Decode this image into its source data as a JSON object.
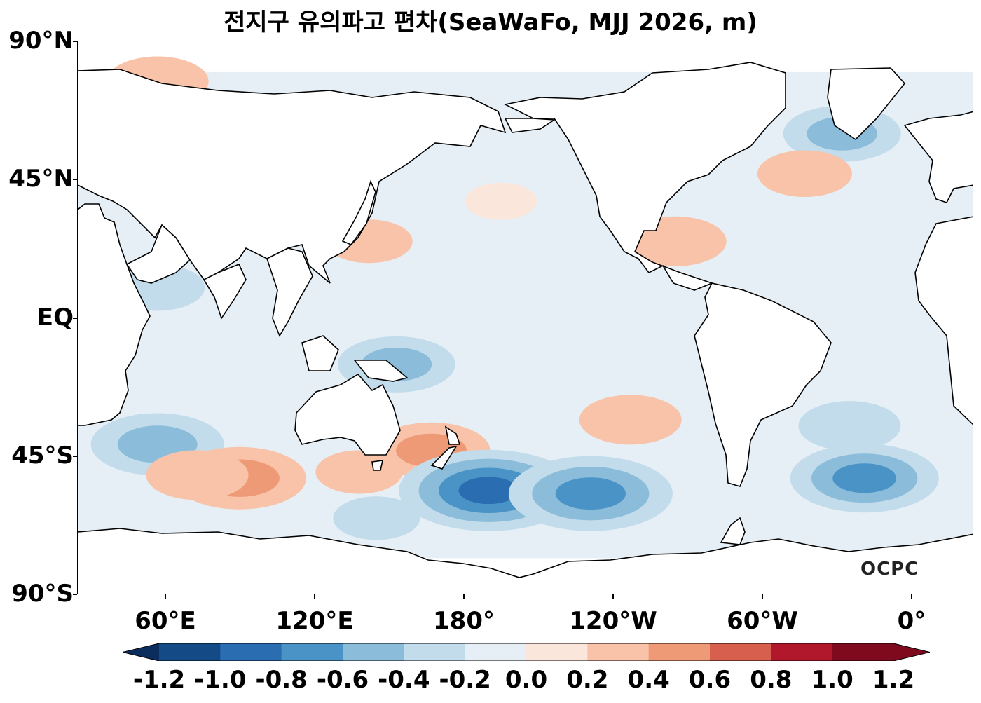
{
  "title": "전지구 유의파고 편차(SeaWaFo, MJJ 2026, m)",
  "logo_text": "OCPC",
  "y_axis": {
    "ticks": [
      "90°N",
      "45°N",
      "EQ",
      "45°S",
      "90°S"
    ]
  },
  "x_axis": {
    "ticks": [
      "60°E",
      "120°E",
      "180°",
      "120°W",
      "60°W",
      "0°"
    ]
  },
  "colorbar": {
    "labels": [
      "-1.2",
      "-1.0",
      "-0.8",
      "-0.6",
      "-0.4",
      "-0.2",
      "0.0",
      "0.2",
      "0.4",
      "0.6",
      "0.8",
      "1.0",
      "1.2"
    ],
    "colors": [
      "#0b2d5e",
      "#144a86",
      "#2a6db0",
      "#4a93c6",
      "#8bbddb",
      "#c2dcec",
      "#e6eff5",
      "#fbe6dc",
      "#f8c3a9",
      "#ef9a77",
      "#d6604d",
      "#b2182b",
      "#7f0a1e"
    ],
    "extend": "both"
  },
  "map_data": {
    "type": "filled-contour",
    "variable": "significant wave height anomaly",
    "units": "m",
    "projection": "PlateCarree, central longitude 180°",
    "lon_range": [
      30,
      390
    ],
    "lat_range": [
      -90,
      90
    ],
    "data_lat_range": [
      -78,
      80
    ],
    "anomaly_areas": [
      {
        "region": "Southern Ocean south of Africa",
        "center": [
          62,
          -41
        ],
        "value": -0.5
      },
      {
        "region": "Southern Indian Ocean",
        "center": [
          95,
          -52
        ],
        "value": 0.5
      },
      {
        "region": "Southern Indian Ocean (east)",
        "center": [
          78,
          -51
        ],
        "value": 0.3
      },
      {
        "region": "South of Australia",
        "center": [
          143,
          -50
        ],
        "value": 0.2
      },
      {
        "region": "Tasman / New Zealand",
        "center": [
          172,
          -43
        ],
        "value": 0.4
      },
      {
        "region": "Coral Sea",
        "center": [
          158,
          -15
        ],
        "value": -0.4
      },
      {
        "region": "South Pacific",
        "center": [
          195,
          -56
        ],
        "value": -0.8
      },
      {
        "region": "South Pacific",
        "center": [
          236,
          -57
        ],
        "value": -0.7
      },
      {
        "region": "Subtropical South Pacific",
        "center": [
          252,
          -33
        ],
        "value": 0.3
      },
      {
        "region": "South Atlantic",
        "center": [
          346,
          -52
        ],
        "value": -0.6
      },
      {
        "region": "South Atlantic",
        "center": [
          340,
          -35
        ],
        "value": -0.3
      },
      {
        "region": "North Atlantic",
        "center": [
          337,
          60
        ],
        "value": -0.4
      },
      {
        "region": "North Atlantic",
        "center": [
          322,
          47
        ],
        "value": 0.25
      },
      {
        "region": "Barents / Kara Sea",
        "center": [
          62,
          77
        ],
        "value": 0.3
      },
      {
        "region": "Arabian Sea",
        "center": [
          62,
          10
        ],
        "value": -0.25
      },
      {
        "region": "Northwest Pacific",
        "center": [
          147,
          25
        ],
        "value": 0.2
      },
      {
        "region": "North Pacific",
        "center": [
          200,
          38
        ],
        "value": 0.1
      },
      {
        "region": "Gulf of Mexico",
        "center": [
          270,
          25
        ],
        "value": 0.3
      },
      {
        "region": "Southern Ocean near Antarctica",
        "center": [
          150,
          -65
        ],
        "value": -0.2
      }
    ]
  }
}
